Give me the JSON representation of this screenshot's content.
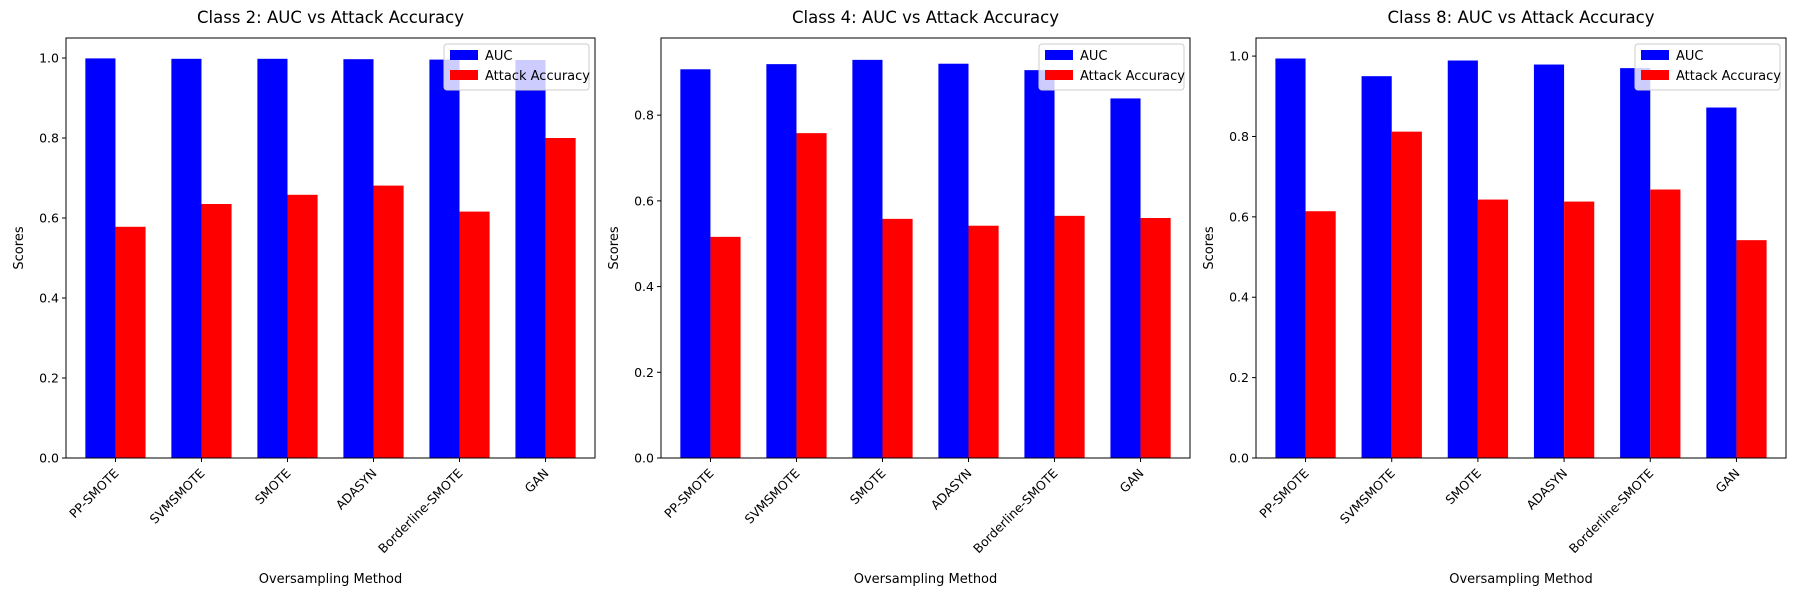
{
  "chart_data": [
    {
      "type": "bar",
      "title": "Class 2: AUC vs Attack Accuracy",
      "xlabel": "Oversampling Method",
      "ylabel": "Scores",
      "categories": [
        "PP-SMOTE",
        "SVMSMOTE",
        "SMOTE",
        "ADASYN",
        "Borderline-SMOTE",
        "GAN"
      ],
      "series": [
        {
          "name": "AUC",
          "color": "#0000ff",
          "values": [
            0.999,
            0.998,
            0.998,
            0.997,
            0.996,
            0.995
          ]
        },
        {
          "name": "Attack Accuracy",
          "color": "#ff0000",
          "values": [
            0.578,
            0.635,
            0.658,
            0.681,
            0.616,
            0.8
          ]
        }
      ],
      "ylim": [
        0,
        1.05
      ],
      "yticks": [
        "0.0",
        "0.2",
        "0.4",
        "0.6",
        "0.8",
        "1.0"
      ],
      "legend": "top-right",
      "grid": false
    },
    {
      "type": "bar",
      "title": "Class 4: AUC vs Attack Accuracy",
      "xlabel": "Oversampling Method",
      "ylabel": "Scores",
      "categories": [
        "PP-SMOTE",
        "SVMSMOTE",
        "SMOTE",
        "ADASYN",
        "Borderline-SMOTE",
        "GAN"
      ],
      "series": [
        {
          "name": "AUC",
          "color": "#0000ff",
          "values": [
            0.907,
            0.919,
            0.929,
            0.92,
            0.905,
            0.839
          ]
        },
        {
          "name": "Attack Accuracy",
          "color": "#ff0000",
          "values": [
            0.516,
            0.758,
            0.558,
            0.542,
            0.565,
            0.56
          ]
        }
      ],
      "ylim": [
        0,
        0.98
      ],
      "yticks": [
        "0.0",
        "0.2",
        "0.4",
        "0.6",
        "0.8"
      ],
      "legend": "top-right",
      "grid": false
    },
    {
      "type": "bar",
      "title": "Class 8: AUC vs Attack Accuracy",
      "xlabel": "Oversampling Method",
      "ylabel": "Scores",
      "categories": [
        "PP-SMOTE",
        "SVMSMOTE",
        "SMOTE",
        "ADASYN",
        "Borderline-SMOTE",
        "GAN"
      ],
      "series": [
        {
          "name": "AUC",
          "color": "#0000ff",
          "values": [
            0.994,
            0.95,
            0.989,
            0.979,
            0.97,
            0.872
          ]
        },
        {
          "name": "Attack Accuracy",
          "color": "#ff0000",
          "values": [
            0.614,
            0.812,
            0.643,
            0.638,
            0.668,
            0.542
          ]
        }
      ],
      "ylim": [
        0,
        1.045
      ],
      "yticks": [
        "0.0",
        "0.2",
        "0.4",
        "0.6",
        "0.8",
        "1.0"
      ],
      "legend": "top-right",
      "grid": false
    }
  ]
}
